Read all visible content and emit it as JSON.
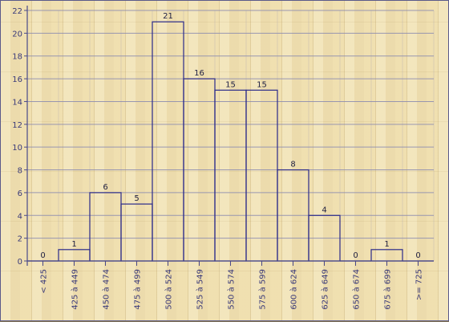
{
  "chart_data": {
    "type": "bar",
    "title": "",
    "xlabel": "",
    "ylabel": "",
    "ylim": [
      0,
      22
    ],
    "yticks": [
      0,
      2,
      4,
      6,
      8,
      10,
      12,
      14,
      16,
      18,
      20,
      22
    ],
    "grid": true,
    "categories": [
      "< 425",
      "425 à 449",
      "450 à 474",
      "475 à 499",
      "500 à 524",
      "525 à 549",
      "550 à 574",
      "575 à 599",
      "600 à 624",
      "625 à 649",
      "650 à 674",
      "675 à 699",
      ">= 725"
    ],
    "values": [
      0,
      1,
      6,
      5,
      21,
      16,
      15,
      15,
      8,
      4,
      0,
      1,
      0
    ],
    "data_labels": [
      "0",
      "1",
      "6",
      "5",
      "21",
      "16",
      "15",
      "15",
      "8",
      "4",
      "0",
      "1",
      "0"
    ],
    "colors": {
      "axis": "#4a4a8a",
      "bar_stroke": "#2a2a8a",
      "grid": "#8a8ab0",
      "text": "#3a3a7a"
    }
  }
}
